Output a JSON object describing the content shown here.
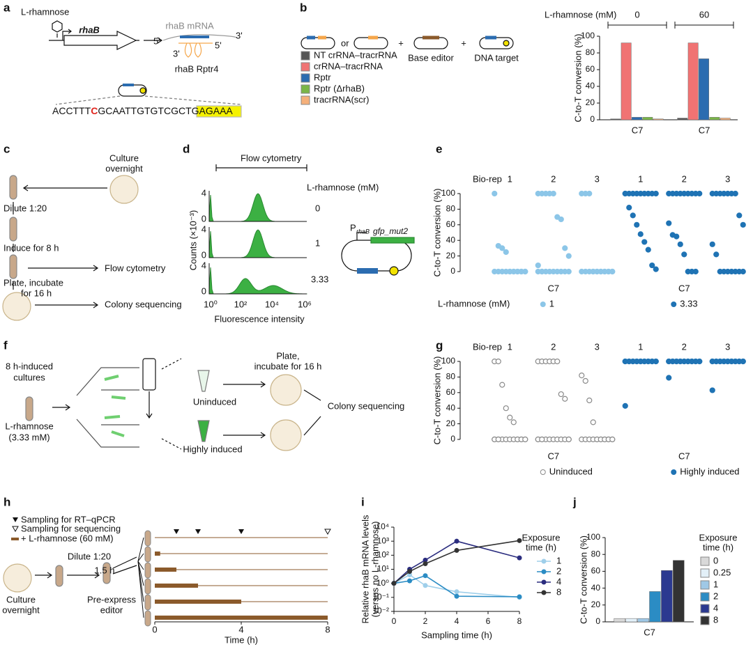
{
  "figure": {
    "panel_labels": [
      "a",
      "b",
      "c",
      "d",
      "e",
      "f",
      "g",
      "h",
      "i",
      "j"
    ],
    "a": {
      "inducer": "L-rhamnose",
      "gene": "rhaB",
      "mrna": "rhaB mRNA",
      "mrna_5": "5'",
      "mrna_3": "3'",
      "rptr_3": "3'",
      "rptr_5": "5'",
      "rptr": "rhaB Rptr4",
      "sequence": [
        "ACCTTT",
        "C",
        "GCAATTGTGTCGC",
        "TGAGAAA"
      ]
    },
    "b": {
      "or": "or",
      "plus": [
        "+",
        "+"
      ],
      "base_editor": "Base editor",
      "dna_target": "DNA target"
    },
    "c": {
      "culture": [
        "Culture",
        "overnight"
      ],
      "dilute": "Dilute 1:20",
      "induce": "Induce for 8 h",
      "plate": [
        "Plate, incubate",
        "for 16 h"
      ],
      "flow": "Flow cytometry",
      "colony": "Colony sequencing"
    },
    "d": {
      "title": "Flow cytometry",
      "conc_title": "L-rhamnose (mM)",
      "concs": [
        "0",
        "1",
        "3.33"
      ],
      "yticks": [
        "4",
        "0"
      ],
      "ylabel": "Counts (×10⁻³)",
      "xticks": [
        "10⁰",
        "10²",
        "10⁴",
        "10⁶"
      ],
      "xlabel": "Fluorescence intensity",
      "promoter": "P",
      "promoter_sub": "rhaB",
      "gene": "gfp_mut2"
    },
    "f": {
      "cultures": [
        "8 h-induced",
        "cultures"
      ],
      "inducer": [
        "L-rhamnose",
        "(3.33 mM)"
      ],
      "uninduced": "Uninduced",
      "high": "Highly induced",
      "plate": [
        "Plate,",
        "incubate for 16 h"
      ],
      "colony": "Colony sequencing"
    },
    "h": {
      "legend": [
        "Sampling for RT–qPCR",
        "Sampling for sequencing",
        "+ L-rhamnose (60 mM)"
      ],
      "dilute": "Dilute 1:20",
      "preexpress_time": "1.5 h",
      "culture": [
        "Culture",
        "overnight"
      ],
      "preexpress": [
        "Pre-express",
        "editor"
      ],
      "xlabel": "Time (h)",
      "xlim": [
        0,
        8
      ],
      "xticks": [
        0,
        4,
        8
      ],
      "exposures": [
        0,
        0.25,
        1,
        2,
        4,
        8
      ],
      "rtqpcr_times": [
        1,
        2,
        4
      ],
      "sequencing_times": [
        8
      ]
    }
  },
  "chart_data": [
    {
      "type": "bar",
      "ylabel": "C-to-T conversion (%)",
      "group_title": "L-rhamnose (mM)",
      "groups": [
        "0",
        "60"
      ],
      "categories": [
        "C7",
        "C7"
      ],
      "series": [
        {
          "name": "NT crRNA–tracrRNA",
          "color": "#555555",
          "values": [
            1,
            2
          ]
        },
        {
          "name": "crRNA–tracrRNA",
          "color": "#f07373",
          "values": [
            92,
            92
          ]
        },
        {
          "name": "Rptr",
          "color": "#2b6cb0",
          "values": [
            3,
            73
          ]
        },
        {
          "name": "Rptr (ΔrhaB)",
          "color": "#7ab648",
          "values": [
            3,
            3
          ]
        },
        {
          "name": "tracrRNA(scr)",
          "color": "#f5b07a",
          "values": [
            1,
            2
          ]
        }
      ],
      "ylim": [
        0,
        100
      ],
      "yticks": [
        0,
        20,
        40,
        60,
        80,
        100
      ]
    },
    {
      "type": "strip",
      "ylabel": "C-to-T conversion (%)",
      "rep_title": "Bio-rep",
      "rep_labels": [
        "1",
        "2",
        "3"
      ],
      "categories": [
        "C7",
        "C7"
      ],
      "legend_title": "L-rhamnose (mM)",
      "series": [
        {
          "name": "1",
          "color": "#8cc6e8",
          "reps": [
            [
              100,
              33,
              30,
              25,
              0,
              0,
              0,
              0,
              0,
              0,
              0,
              0,
              0,
              0,
              0,
              0,
              0,
              0
            ],
            [
              100,
              100,
              100,
              100,
              100,
              70,
              67,
              30,
              20,
              8,
              0,
              0,
              0,
              0,
              0,
              0,
              0,
              0,
              0,
              0
            ],
            [
              100,
              100,
              100,
              0,
              0,
              0,
              0,
              0,
              0,
              0,
              0,
              0,
              0,
              0,
              0,
              0,
              0,
              0
            ]
          ]
        },
        {
          "name": "3.33",
          "color": "#1f73b4",
          "reps": [
            [
              100,
              100,
              100,
              100,
              100,
              100,
              100,
              100,
              100,
              100,
              82,
              72,
              60,
              48,
              38,
              28,
              8,
              3
            ],
            [
              100,
              100,
              100,
              100,
              100,
              100,
              100,
              100,
              100,
              62,
              47,
              45,
              35,
              22,
              0,
              0,
              0
            ],
            [
              100,
              100,
              100,
              100,
              100,
              100,
              100,
              72,
              60,
              35,
              22,
              0,
              0,
              0,
              0,
              0,
              0,
              0
            ]
          ]
        }
      ],
      "ylim": [
        0,
        100
      ],
      "yticks": [
        0,
        20,
        40,
        60,
        80,
        100
      ]
    },
    {
      "type": "strip",
      "ylabel": "C-to-T conversion (%)",
      "rep_title": "Bio-rep",
      "rep_labels": [
        "1",
        "2",
        "3"
      ],
      "categories": [
        "C7",
        "C7"
      ],
      "series": [
        {
          "name": "Uninduced",
          "color": "#8a8a8a",
          "marker": "open",
          "reps": [
            [
              100,
              100,
              70,
              40,
              28,
              22,
              0,
              0,
              0,
              0,
              0,
              0,
              0,
              0,
              0,
              0,
              0,
              0,
              0,
              0
            ],
            [
              100,
              100,
              100,
              100,
              100,
              100,
              58,
              52,
              0,
              0,
              0,
              0,
              0,
              0,
              0,
              0,
              0,
              0,
              0,
              0
            ],
            [
              82,
              75,
              50,
              22,
              0,
              0,
              0,
              0,
              0,
              0,
              0,
              0,
              0,
              0,
              0,
              0,
              0,
              0
            ]
          ]
        },
        {
          "name": "Highly induced",
          "color": "#1f73b4",
          "marker": "filled",
          "reps": [
            [
              100,
              100,
              100,
              100,
              100,
              100,
              100,
              100,
              100,
              100,
              100,
              100,
              100,
              100,
              100,
              100,
              100,
              100,
              43
            ],
            [
              100,
              100,
              100,
              100,
              100,
              100,
              100,
              100,
              100,
              100,
              100,
              100,
              100,
              100,
              100,
              100,
              100,
              100,
              79
            ],
            [
              100,
              100,
              100,
              100,
              100,
              100,
              100,
              100,
              100,
              100,
              100,
              100,
              100,
              100,
              100,
              100,
              100,
              100,
              63
            ]
          ]
        }
      ],
      "ylim": [
        0,
        100
      ],
      "yticks": [
        0,
        20,
        40,
        60,
        80,
        100
      ]
    },
    {
      "type": "line",
      "ylabel": [
        "Relative rhaB mRNA levels",
        "(versus no L-rhamnose)"
      ],
      "xlabel": "Sampling time (h)",
      "legend_title": [
        "Exposure",
        "time (h)"
      ],
      "x": [
        0,
        1,
        2,
        4,
        8
      ],
      "log_y": true,
      "series": [
        {
          "name": "1",
          "color": "#9fcfea",
          "values": [
            1,
            4,
            0.7,
            0.25,
            0.1
          ]
        },
        {
          "name": "2",
          "color": "#2b8cc4",
          "values": [
            1,
            1.5,
            3.5,
            0.12,
            0.11
          ]
        },
        {
          "name": "4",
          "color": "#2b2d7f",
          "values": [
            1,
            10,
            45,
            1000,
            65
          ]
        },
        {
          "name": "8",
          "color": "#333333",
          "values": [
            1,
            7,
            25,
            220,
            1100
          ]
        }
      ],
      "xlim": [
        0,
        8
      ],
      "xticks": [
        0,
        2,
        4,
        6,
        8
      ],
      "ylim": [
        0.01,
        10000
      ],
      "yticks": [
        {
          "value": 0.01,
          "label": "10⁻²"
        },
        {
          "value": 0.1,
          "label": "10⁻¹"
        },
        {
          "value": 1,
          "label": "10⁰"
        },
        {
          "value": 10,
          "label": "10¹"
        },
        {
          "value": 100,
          "label": "10²"
        },
        {
          "value": 1000,
          "label": "10³"
        },
        {
          "value": 10000,
          "label": "10⁴"
        }
      ]
    },
    {
      "type": "bar",
      "ylabel": "C-to-T conversion (%)",
      "categories": [
        "C7"
      ],
      "legend_title": [
        "Exposure",
        "time (h)"
      ],
      "series": [
        {
          "name": "0",
          "color": "#d9d9d9",
          "values": [
            4
          ]
        },
        {
          "name": "0.25",
          "color": "#e3f0f8",
          "values": [
            4
          ]
        },
        {
          "name": "1",
          "color": "#9fc8e6",
          "values": [
            4
          ]
        },
        {
          "name": "2",
          "color": "#2b8cc4",
          "values": [
            36
          ]
        },
        {
          "name": "4",
          "color": "#2b3990",
          "values": [
            61
          ]
        },
        {
          "name": "8",
          "color": "#333333",
          "values": [
            73
          ]
        }
      ],
      "ylim": [
        0,
        100
      ],
      "yticks": [
        0,
        20,
        40,
        60,
        80,
        100
      ]
    }
  ]
}
